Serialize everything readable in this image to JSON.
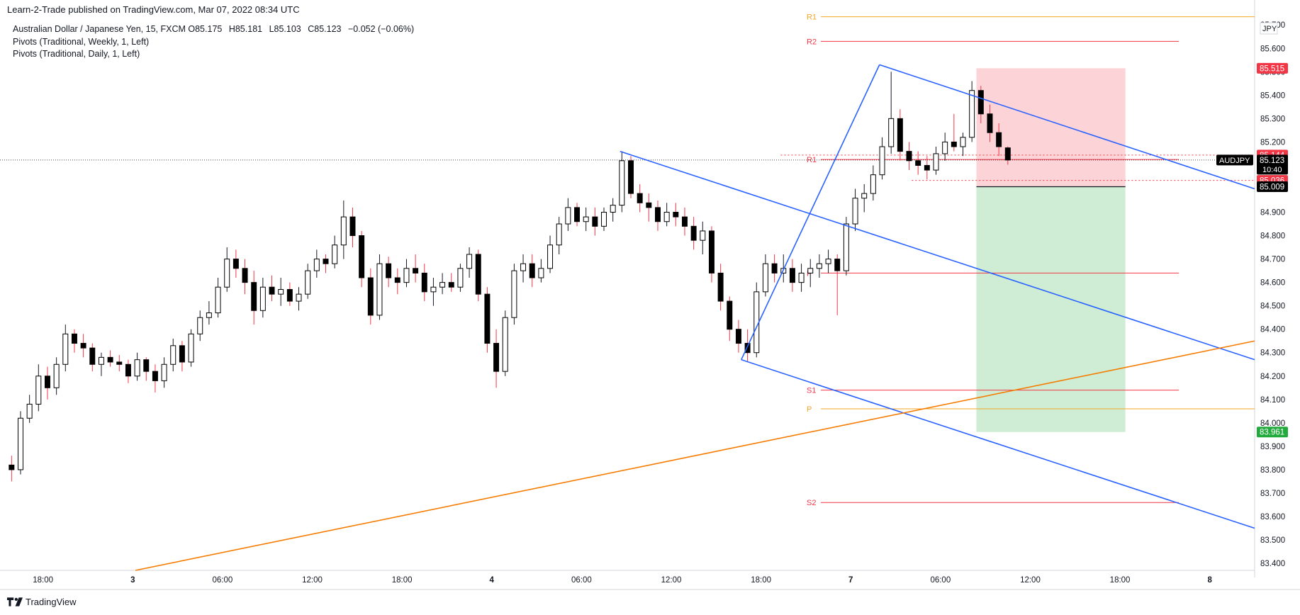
{
  "header": {
    "published": "Learn-2-Trade published on TradingView.com, Mar 07, 2022 08:34 UTC"
  },
  "legend": {
    "symbol": "Australian Dollar / Japanese Yen, 15, FXCM",
    "open_label": "O",
    "open": "85.175",
    "high_label": "H",
    "high": "85.181",
    "low_label": "L",
    "low": "85.103",
    "close_label": "C",
    "close": "85.123",
    "change": "−0.052 (−0.06%)",
    "pivots_weekly": "Pivots (Traditional, Weekly, 1, Left)",
    "pivots_daily": "Pivots (Traditional, Daily, 1, Left)"
  },
  "footer": {
    "brand": "TradingView"
  },
  "chart_data": {
    "type": "candlestick",
    "symbol": "AUDJPY",
    "currency": "JPY",
    "interval": "15",
    "y_ticks": [
      "85.700",
      "85.600",
      "85.500",
      "85.400",
      "85.300",
      "85.200",
      "85.100",
      "85.000",
      "84.900",
      "84.800",
      "84.700",
      "84.600",
      "84.500",
      "84.400",
      "84.300",
      "84.200",
      "84.100",
      "84.000",
      "83.900",
      "83.800",
      "83.700",
      "83.600",
      "83.500",
      "83.400"
    ],
    "ylim": [
      83.37,
      85.74
    ],
    "x_ticks": [
      {
        "label": "18:00",
        "t": 4
      },
      {
        "label": "3",
        "t": 14
      },
      {
        "label": "06:00",
        "t": 24
      },
      {
        "label": "12:00",
        "t": 34
      },
      {
        "label": "18:00",
        "t": 44
      },
      {
        "label": "4",
        "t": 54
      },
      {
        "label": "06:00",
        "t": 64
      },
      {
        "label": "12:00",
        "t": 74
      },
      {
        "label": "18:00",
        "t": 84
      },
      {
        "label": "7",
        "t": 94
      },
      {
        "label": "06:00",
        "t": 104
      },
      {
        "label": "12:00",
        "t": 114
      },
      {
        "label": "18:00",
        "t": 124
      },
      {
        "label": "8",
        "t": 134
      }
    ],
    "xlim": [
      0,
      139
    ],
    "price_labels": [
      {
        "text": "85.515",
        "price": 85.515,
        "color": "#f23645"
      },
      {
        "text": "85.144",
        "price": 85.144,
        "color": "#f23645"
      },
      {
        "text": "85.123",
        "price": 85.123,
        "color": "#000000",
        "symbol": "AUDJPY",
        "countdown": "10:40"
      },
      {
        "text": "85.036",
        "price": 85.036,
        "color": "#f23645"
      },
      {
        "text": "85.009",
        "price": 85.009,
        "color": "#000000"
      },
      {
        "text": "83.961",
        "price": 83.961,
        "color": "#22ab3c"
      }
    ],
    "pivots": [
      {
        "label": "R2",
        "price": 85.63,
        "color": "#f23645",
        "kind": "weekly"
      },
      {
        "label": "R1",
        "price": 85.125,
        "color": "#f23645",
        "kind": "weekly"
      },
      {
        "label": "P",
        "price": 84.64,
        "color": "#f23645",
        "kind": "weekly"
      },
      {
        "label": "S1",
        "price": 84.14,
        "color": "#f23645",
        "kind": "weekly"
      },
      {
        "label": "S2",
        "price": 83.66,
        "color": "#f23645",
        "kind": "weekly"
      },
      {
        "label": "R1",
        "price": 85.735,
        "color": "#f5a623",
        "kind": "daily"
      },
      {
        "label": "P",
        "price": 84.06,
        "color": "#f5a623",
        "kind": "daily"
      }
    ],
    "trendlines": [
      {
        "name": "channel-upper",
        "color": "#2962ff",
        "from": {
          "t": 68.3,
          "p": 85.16
        },
        "to": {
          "t": 139,
          "p": 84.27
        }
      },
      {
        "name": "channel-lower",
        "color": "#2962ff",
        "from": {
          "t": 81.8,
          "p": 84.27
        },
        "to": {
          "t": 139,
          "p": 83.55
        }
      },
      {
        "name": "pattern-upper",
        "color": "#2962ff",
        "from": {
          "t": 97.2,
          "p": 85.53
        },
        "to": {
          "t": 139,
          "p": 85.0
        }
      },
      {
        "name": "pattern-rise",
        "color": "#2962ff",
        "from": {
          "t": 81.8,
          "p": 84.27
        },
        "to": {
          "t": 97.2,
          "p": 85.53
        }
      },
      {
        "name": "support",
        "color": "#f57c00",
        "from": {
          "t": 14.3,
          "p": 83.37
        },
        "to": {
          "t": 139,
          "p": 84.35
        }
      }
    ],
    "position": {
      "type": "short",
      "entry": 85.009,
      "stop": 85.515,
      "target": 83.961,
      "t_start": 108,
      "t_end": 124.6
    },
    "candles": [
      {
        "o": 83.82,
        "h": 83.86,
        "l": 83.75,
        "c": 83.8
      },
      {
        "o": 83.8,
        "h": 84.05,
        "l": 83.78,
        "c": 84.02
      },
      {
        "o": 84.02,
        "h": 84.12,
        "l": 84.0,
        "c": 84.08
      },
      {
        "o": 84.08,
        "h": 84.25,
        "l": 84.05,
        "c": 84.2
      },
      {
        "o": 84.2,
        "h": 84.24,
        "l": 84.1,
        "c": 84.15
      },
      {
        "o": 84.15,
        "h": 84.28,
        "l": 84.12,
        "c": 84.25
      },
      {
        "o": 84.25,
        "h": 84.42,
        "l": 84.22,
        "c": 84.38
      },
      {
        "o": 84.38,
        "h": 84.4,
        "l": 84.3,
        "c": 84.34
      },
      {
        "o": 84.34,
        "h": 84.38,
        "l": 84.28,
        "c": 84.32
      },
      {
        "o": 84.32,
        "h": 84.34,
        "l": 84.22,
        "c": 84.25
      },
      {
        "o": 84.25,
        "h": 84.3,
        "l": 84.2,
        "c": 84.28
      },
      {
        "o": 84.28,
        "h": 84.31,
        "l": 84.24,
        "c": 84.26
      },
      {
        "o": 84.26,
        "h": 84.29,
        "l": 84.22,
        "c": 84.25
      },
      {
        "o": 84.25,
        "h": 84.27,
        "l": 84.17,
        "c": 84.2
      },
      {
        "o": 84.2,
        "h": 84.3,
        "l": 84.18,
        "c": 84.27
      },
      {
        "o": 84.27,
        "h": 84.28,
        "l": 84.18,
        "c": 84.22
      },
      {
        "o": 84.22,
        "h": 84.25,
        "l": 84.13,
        "c": 84.18
      },
      {
        "o": 84.18,
        "h": 84.28,
        "l": 84.15,
        "c": 84.25
      },
      {
        "o": 84.25,
        "h": 84.36,
        "l": 84.22,
        "c": 84.33
      },
      {
        "o": 84.33,
        "h": 84.35,
        "l": 84.22,
        "c": 84.26
      },
      {
        "o": 84.26,
        "h": 84.4,
        "l": 84.24,
        "c": 84.38
      },
      {
        "o": 84.38,
        "h": 84.48,
        "l": 84.35,
        "c": 84.45
      },
      {
        "o": 84.45,
        "h": 84.52,
        "l": 84.42,
        "c": 84.47
      },
      {
        "o": 84.47,
        "h": 84.62,
        "l": 84.45,
        "c": 84.58
      },
      {
        "o": 84.58,
        "h": 84.75,
        "l": 84.56,
        "c": 84.7
      },
      {
        "o": 84.7,
        "h": 84.74,
        "l": 84.62,
        "c": 84.66
      },
      {
        "o": 84.66,
        "h": 84.7,
        "l": 84.55,
        "c": 84.6
      },
      {
        "o": 84.6,
        "h": 84.65,
        "l": 84.42,
        "c": 84.48
      },
      {
        "o": 84.48,
        "h": 84.62,
        "l": 84.45,
        "c": 84.58
      },
      {
        "o": 84.58,
        "h": 84.63,
        "l": 84.52,
        "c": 84.55
      },
      {
        "o": 84.55,
        "h": 84.62,
        "l": 84.5,
        "c": 84.57
      },
      {
        "o": 84.57,
        "h": 84.6,
        "l": 84.5,
        "c": 84.52
      },
      {
        "o": 84.52,
        "h": 84.58,
        "l": 84.48,
        "c": 84.55
      },
      {
        "o": 84.55,
        "h": 84.68,
        "l": 84.53,
        "c": 84.65
      },
      {
        "o": 84.65,
        "h": 84.74,
        "l": 84.62,
        "c": 84.7
      },
      {
        "o": 84.7,
        "h": 84.72,
        "l": 84.64,
        "c": 84.68
      },
      {
        "o": 84.68,
        "h": 84.8,
        "l": 84.66,
        "c": 84.76
      },
      {
        "o": 84.76,
        "h": 84.95,
        "l": 84.7,
        "c": 84.88
      },
      {
        "o": 84.88,
        "h": 84.92,
        "l": 84.75,
        "c": 84.8
      },
      {
        "o": 84.8,
        "h": 84.82,
        "l": 84.58,
        "c": 84.62
      },
      {
        "o": 84.62,
        "h": 84.66,
        "l": 84.42,
        "c": 84.46
      },
      {
        "o": 84.46,
        "h": 84.72,
        "l": 84.44,
        "c": 84.68
      },
      {
        "o": 84.68,
        "h": 84.71,
        "l": 84.58,
        "c": 84.62
      },
      {
        "o": 84.62,
        "h": 84.66,
        "l": 84.55,
        "c": 84.6
      },
      {
        "o": 84.6,
        "h": 84.7,
        "l": 84.58,
        "c": 84.66
      },
      {
        "o": 84.66,
        "h": 84.72,
        "l": 84.6,
        "c": 84.64
      },
      {
        "o": 84.64,
        "h": 84.68,
        "l": 84.52,
        "c": 84.56
      },
      {
        "o": 84.56,
        "h": 84.62,
        "l": 84.5,
        "c": 84.58
      },
      {
        "o": 84.58,
        "h": 84.64,
        "l": 84.55,
        "c": 84.6
      },
      {
        "o": 84.6,
        "h": 84.64,
        "l": 84.56,
        "c": 84.58
      },
      {
        "o": 84.58,
        "h": 84.68,
        "l": 84.56,
        "c": 84.66
      },
      {
        "o": 84.66,
        "h": 84.75,
        "l": 84.62,
        "c": 84.72
      },
      {
        "o": 84.72,
        "h": 84.74,
        "l": 84.52,
        "c": 84.55
      },
      {
        "o": 84.55,
        "h": 84.58,
        "l": 84.3,
        "c": 84.34
      },
      {
        "o": 84.34,
        "h": 84.4,
        "l": 84.15,
        "c": 84.22
      },
      {
        "o": 84.22,
        "h": 84.48,
        "l": 84.2,
        "c": 84.45
      },
      {
        "o": 84.45,
        "h": 84.68,
        "l": 84.42,
        "c": 84.65
      },
      {
        "o": 84.65,
        "h": 84.72,
        "l": 84.6,
        "c": 84.68
      },
      {
        "o": 84.68,
        "h": 84.72,
        "l": 84.58,
        "c": 84.62
      },
      {
        "o": 84.62,
        "h": 84.7,
        "l": 84.6,
        "c": 84.66
      },
      {
        "o": 84.66,
        "h": 84.8,
        "l": 84.64,
        "c": 84.76
      },
      {
        "o": 84.76,
        "h": 84.88,
        "l": 84.72,
        "c": 84.85
      },
      {
        "o": 84.85,
        "h": 84.96,
        "l": 84.82,
        "c": 84.92
      },
      {
        "o": 84.92,
        "h": 84.94,
        "l": 84.84,
        "c": 84.86
      },
      {
        "o": 84.86,
        "h": 84.92,
        "l": 84.82,
        "c": 84.88
      },
      {
        "o": 84.88,
        "h": 84.92,
        "l": 84.8,
        "c": 84.84
      },
      {
        "o": 84.84,
        "h": 84.92,
        "l": 84.82,
        "c": 84.9
      },
      {
        "o": 84.9,
        "h": 84.96,
        "l": 84.86,
        "c": 84.93
      },
      {
        "o": 84.93,
        "h": 85.16,
        "l": 84.9,
        "c": 85.12
      },
      {
        "o": 85.12,
        "h": 85.14,
        "l": 84.96,
        "c": 84.98
      },
      {
        "o": 84.98,
        "h": 85.02,
        "l": 84.9,
        "c": 84.94
      },
      {
        "o": 84.94,
        "h": 84.98,
        "l": 84.86,
        "c": 84.92
      },
      {
        "o": 84.92,
        "h": 84.95,
        "l": 84.82,
        "c": 84.86
      },
      {
        "o": 84.86,
        "h": 84.94,
        "l": 84.84,
        "c": 84.9
      },
      {
        "o": 84.9,
        "h": 84.94,
        "l": 84.84,
        "c": 84.88
      },
      {
        "o": 84.88,
        "h": 84.92,
        "l": 84.8,
        "c": 84.84
      },
      {
        "o": 84.84,
        "h": 84.88,
        "l": 84.74,
        "c": 84.78
      },
      {
        "o": 84.78,
        "h": 84.86,
        "l": 84.72,
        "c": 84.82
      },
      {
        "o": 84.82,
        "h": 84.84,
        "l": 84.6,
        "c": 84.64
      },
      {
        "o": 84.64,
        "h": 84.68,
        "l": 84.48,
        "c": 84.52
      },
      {
        "o": 84.52,
        "h": 84.54,
        "l": 84.35,
        "c": 84.4
      },
      {
        "o": 84.4,
        "h": 84.44,
        "l": 84.3,
        "c": 84.34
      },
      {
        "o": 84.34,
        "h": 84.4,
        "l": 84.26,
        "c": 84.3
      },
      {
        "o": 84.3,
        "h": 84.6,
        "l": 84.28,
        "c": 84.56
      },
      {
        "o": 84.56,
        "h": 84.72,
        "l": 84.54,
        "c": 84.68
      },
      {
        "o": 84.68,
        "h": 84.72,
        "l": 84.6,
        "c": 84.64
      },
      {
        "o": 84.64,
        "h": 84.72,
        "l": 84.6,
        "c": 84.66
      },
      {
        "o": 84.66,
        "h": 84.7,
        "l": 84.56,
        "c": 84.6
      },
      {
        "o": 84.6,
        "h": 84.68,
        "l": 84.56,
        "c": 84.64
      },
      {
        "o": 84.64,
        "h": 84.7,
        "l": 84.58,
        "c": 84.66
      },
      {
        "o": 84.66,
        "h": 84.72,
        "l": 84.62,
        "c": 84.68
      },
      {
        "o": 84.68,
        "h": 84.74,
        "l": 84.64,
        "c": 84.7
      },
      {
        "o": 84.7,
        "h": 84.72,
        "l": 84.46,
        "c": 84.65
      },
      {
        "o": 84.65,
        "h": 84.88,
        "l": 84.63,
        "c": 84.85
      },
      {
        "o": 84.85,
        "h": 85.0,
        "l": 84.82,
        "c": 84.96
      },
      {
        "o": 84.96,
        "h": 85.02,
        "l": 84.9,
        "c": 84.98
      },
      {
        "o": 84.98,
        "h": 85.1,
        "l": 84.95,
        "c": 85.06
      },
      {
        "o": 85.06,
        "h": 85.22,
        "l": 85.04,
        "c": 85.18
      },
      {
        "o": 85.18,
        "h": 85.5,
        "l": 85.15,
        "c": 85.3
      },
      {
        "o": 85.3,
        "h": 85.34,
        "l": 85.12,
        "c": 85.16
      },
      {
        "o": 85.16,
        "h": 85.2,
        "l": 85.08,
        "c": 85.12
      },
      {
        "o": 85.12,
        "h": 85.16,
        "l": 85.06,
        "c": 85.1
      },
      {
        "o": 85.1,
        "h": 85.14,
        "l": 85.04,
        "c": 85.08
      },
      {
        "o": 85.08,
        "h": 85.18,
        "l": 85.06,
        "c": 85.15
      },
      {
        "o": 85.15,
        "h": 85.24,
        "l": 85.12,
        "c": 85.2
      },
      {
        "o": 85.2,
        "h": 85.32,
        "l": 85.16,
        "c": 85.18
      },
      {
        "o": 85.18,
        "h": 85.24,
        "l": 85.14,
        "c": 85.22
      },
      {
        "o": 85.22,
        "h": 85.46,
        "l": 85.2,
        "c": 85.42
      },
      {
        "o": 85.42,
        "h": 85.44,
        "l": 85.28,
        "c": 85.32
      },
      {
        "o": 85.32,
        "h": 85.36,
        "l": 85.2,
        "c": 85.24
      },
      {
        "o": 85.24,
        "h": 85.28,
        "l": 85.14,
        "c": 85.18
      },
      {
        "o": 85.175,
        "h": 85.181,
        "l": 85.103,
        "c": 85.123
      }
    ]
  }
}
